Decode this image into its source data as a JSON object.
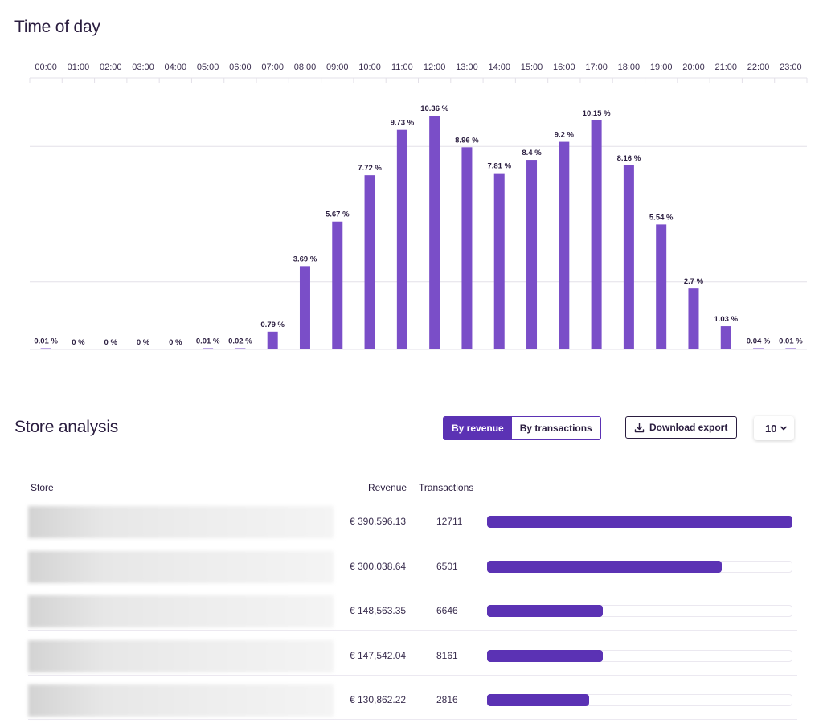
{
  "time_of_day": {
    "title": "Time of day"
  },
  "colors": {
    "bar": "#7a4ec8",
    "accent": "#5b32b4",
    "grid": "#e3e0e8"
  },
  "chart_data": {
    "type": "bar",
    "title": "Time of day",
    "xlabel": "",
    "ylabel": "",
    "categories": [
      "00:00",
      "01:00",
      "02:00",
      "03:00",
      "04:00",
      "05:00",
      "06:00",
      "07:00",
      "08:00",
      "09:00",
      "10:00",
      "11:00",
      "12:00",
      "13:00",
      "14:00",
      "15:00",
      "16:00",
      "17:00",
      "18:00",
      "19:00",
      "20:00",
      "21:00",
      "22:00",
      "23:00"
    ],
    "values": [
      0.01,
      0,
      0,
      0,
      0,
      0.01,
      0.02,
      0.79,
      3.69,
      5.67,
      7.72,
      9.73,
      10.36,
      8.96,
      7.81,
      8.4,
      9.2,
      10.15,
      8.16,
      5.54,
      2.7,
      1.03,
      0.04,
      0.01
    ],
    "value_labels": [
      "0.01 %",
      "0 %",
      "0 %",
      "0 %",
      "0 %",
      "0.01 %",
      "0.02 %",
      "0.79 %",
      "3.69 %",
      "5.67 %",
      "7.72 %",
      "9.73 %",
      "10.36 %",
      "8.96 %",
      "7.81 %",
      "8.4 %",
      "9.2 %",
      "10.15 %",
      "8.16 %",
      "5.54 %",
      "2.7 %",
      "1.03 %",
      "0.04 %",
      "0.01 %"
    ],
    "ylim": [
      0,
      12
    ],
    "gridlines": [
      3,
      6,
      9
    ],
    "xaxis_position": "top"
  },
  "store_analysis": {
    "title": "Store analysis",
    "toggle": {
      "by_revenue": "By revenue",
      "by_transactions": "By transactions",
      "active": "by_revenue"
    },
    "download_label": "Download export",
    "page_size": "10",
    "columns": {
      "store": "Store",
      "revenue": "Revenue",
      "transactions": "Transactions"
    },
    "rows": [
      {
        "revenue": "€ 390,596.13",
        "transactions": "12711",
        "share": 1.0
      },
      {
        "revenue": "€ 300,038.64",
        "transactions": "6501",
        "share": 0.768
      },
      {
        "revenue": "€ 148,563.35",
        "transactions": "6646",
        "share": 0.38
      },
      {
        "revenue": "€ 147,542.04",
        "transactions": "8161",
        "share": 0.378
      },
      {
        "revenue": "€ 130,862.22",
        "transactions": "2816",
        "share": 0.335
      }
    ]
  }
}
